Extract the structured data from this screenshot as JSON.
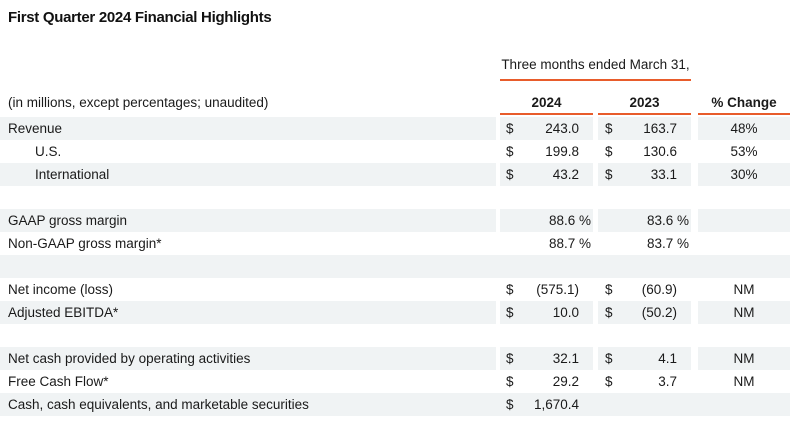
{
  "title": "First Quarter 2024 Financial Highlights",
  "colors": {
    "accent": "#E85C2B",
    "row_shade": "#F0F3F4",
    "text": "#1A1A1A"
  },
  "table": {
    "period_header": "Three months ended March 31,",
    "unit_note": "(in millions, except percentages; unaudited)",
    "columns": {
      "y2024": "2024",
      "y2023": "2023",
      "change": "% Change"
    },
    "rows": [
      {
        "label": "Revenue",
        "cur1": "$",
        "val1": "243.0",
        "cur2": "$",
        "val2": "163.7",
        "change": "48%"
      },
      {
        "label": "U.S.",
        "cur1": "$",
        "val1": "199.8",
        "cur2": "$",
        "val2": "130.6",
        "change": "53%"
      },
      {
        "label": "International",
        "cur1": "$",
        "val1": "43.2",
        "cur2": "$",
        "val2": "33.1",
        "change": "30%"
      },
      {
        "spacer": true
      },
      {
        "label": "GAAP gross margin",
        "val1": "88.6 %",
        "val2": "83.6 %",
        "change": ""
      },
      {
        "label": "Non-GAAP gross margin*",
        "val1": "88.7 %",
        "val2": "83.7 %",
        "change": ""
      },
      {
        "spacer": true
      },
      {
        "label": "Net income (loss)",
        "cur1": "$",
        "val1": "(575.1)",
        "cur2": "$",
        "val2": "(60.9)",
        "change": "NM"
      },
      {
        "label": "Adjusted EBITDA*",
        "cur1": "$",
        "val1": "10.0",
        "cur2": "$",
        "val2": "(50.2)",
        "change": "NM"
      },
      {
        "spacer": true
      },
      {
        "label": "Net cash provided by operating activities",
        "cur1": "$",
        "val1": "32.1",
        "cur2": "$",
        "val2": "4.1",
        "change": "NM"
      },
      {
        "label": "Free Cash Flow*",
        "cur1": "$",
        "val1": "29.2",
        "cur2": "$",
        "val2": "3.7",
        "change": "NM"
      },
      {
        "label": "Cash, cash equivalents, and marketable securities",
        "cur1": "$",
        "val1": "1,670.4",
        "val2": "",
        "change": ""
      }
    ]
  }
}
